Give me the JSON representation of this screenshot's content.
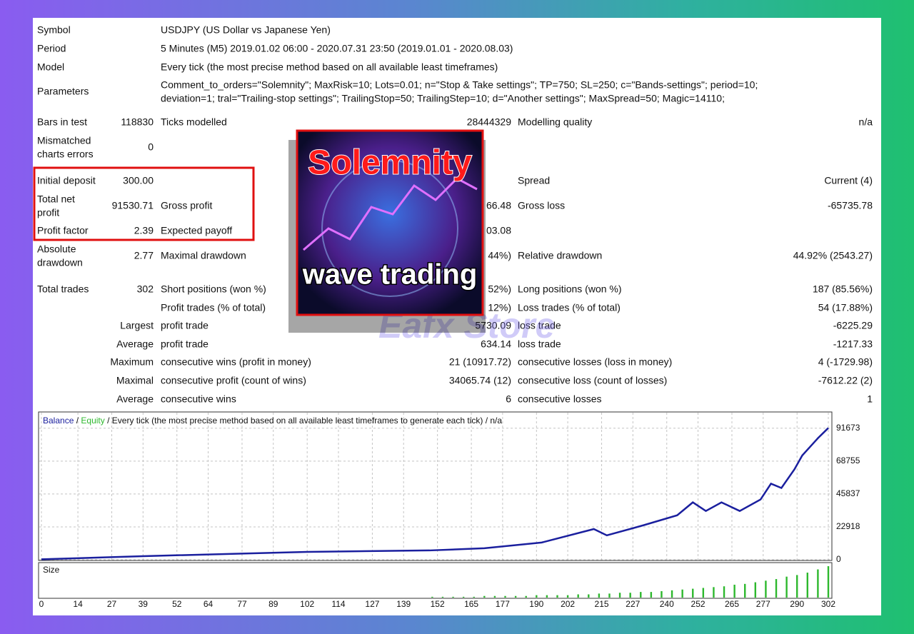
{
  "header_rows": [
    [
      "Symbol",
      "USDJPY (US Dollar vs Japanese Yen)"
    ],
    [
      "Period",
      "5 Minutes (M5) 2019.01.02 06:00 - 2020.07.31 23:50 (2019.01.01 - 2020.08.03)"
    ],
    [
      "Model",
      "Every tick (the most precise method based on all available least timeframes)"
    ]
  ],
  "parameters": {
    "label": "Parameters",
    "lines": [
      "Comment_to_orders=\"Solemnity\"; MaxRisk=10; Lots=0.01; n=\"Stop & Take settings\"; TP=750; SL=250; c=\"Bands-settings\"; period=10;",
      "deviation=1; tral=\"Trailing-stop settings\"; TrailingStop=50; TrailingStep=10; d=\"Another settings\"; MaxSpread=50; Magic=14110;"
    ]
  },
  "rows": [
    {
      "l1": "Bars in test",
      "v1": "118830",
      "l2": "Ticks modelled",
      "v2": "28444329",
      "l3": "Modelling quality",
      "v3": "n/a"
    },
    {
      "l1": [
        "Mismatched",
        "charts errors"
      ],
      "v1": "0"
    },
    {
      "l1": "Initial deposit",
      "v1": "300.00",
      "l3": "Spread",
      "v3": "Current (4)"
    },
    {
      "l1": [
        "Total net",
        "profit"
      ],
      "v1": "91530.71",
      "l2": "Gross profit",
      "v2": "66.48",
      "l3": "Gross loss",
      "v3": "-65735.78"
    },
    {
      "l1": "Profit factor",
      "v1": "2.39",
      "l2": "Expected payoff",
      "v2": "03.08"
    },
    {
      "l1": [
        "Absolute",
        "drawdown"
      ],
      "v1": "2.77",
      "l2": "Maximal drawdown",
      "v2": "44%)",
      "l3": "Relative drawdown",
      "v3": "44.92% (2543.27)"
    },
    {
      "l1": "Total trades",
      "v1": "302",
      "l2": "Short positions (won %)",
      "v2": "52%)",
      "l3": "Long positions (won %)",
      "v3": "187 (85.56%)"
    },
    {
      "l2": "Profit trades (% of total)",
      "v2": "12%)",
      "l3": "Loss trades (% of total)",
      "v3": "54 (17.88%)"
    },
    {
      "v1": "Largest",
      "l2": "profit trade",
      "v2": "5730.09",
      "l3": "loss trade",
      "v3": "-6225.29"
    },
    {
      "v1": "Average",
      "l2": "profit trade",
      "v2": "634.14",
      "l3": "loss trade",
      "v3": "-1217.33"
    },
    {
      "v1": "Maximum",
      "l2": "consecutive wins (profit in money)",
      "v2": "21 (10917.72)",
      "l3": "consecutive losses (loss in money)",
      "v3": "4 (-1729.98)"
    },
    {
      "v1": "Maximal",
      "l2": "consecutive profit (count of wins)",
      "v2": "34065.74 (12)",
      "l3": "consecutive loss (count of losses)",
      "v3": "-7612.22 (2)"
    },
    {
      "v1": "Average",
      "l2": "consecutive wins",
      "v2": "6",
      "l3": "consecutive losses",
      "v3": "1"
    }
  ],
  "overlay": {
    "title": "Solemnity",
    "subtitle": "wave trading",
    "watermark": "Eafx Store"
  },
  "chart_data": {
    "type": "line",
    "separator": "/",
    "equity_label": "Equity",
    "equity_color": "#2eb82e",
    "subtitle": "/ Every tick (the most precise method based on all available least timeframes to generate each tick) / n/a",
    "series": [
      {
        "name": "Balance",
        "color": "#1a1f9e",
        "x": [
          0,
          39,
          102,
          149,
          170,
          192,
          212,
          217,
          231,
          244,
          250,
          255,
          261,
          268,
          276,
          280,
          284,
          289,
          292,
          298,
          302
        ],
        "values": [
          300,
          2500,
          5500,
          6500,
          8000,
          12000,
          21400,
          17000,
          24000,
          31000,
          40000,
          34000,
          40000,
          34000,
          42000,
          53000,
          50000,
          63000,
          72700,
          84700,
          91830
        ]
      }
    ],
    "xlim": [
      0,
      302
    ],
    "xticks": [
      0,
      14,
      27,
      39,
      52,
      64,
      77,
      89,
      102,
      114,
      127,
      139,
      152,
      165,
      177,
      190,
      202,
      215,
      227,
      240,
      252,
      265,
      277,
      290,
      302
    ],
    "ylim": [
      0,
      102500
    ],
    "yticks": [
      0,
      22918,
      45837,
      68755,
      91673
    ],
    "grid": true,
    "size_pane": {
      "label": "Size",
      "color": "#2db82d",
      "x": [
        150,
        154,
        158,
        162,
        166,
        170,
        174,
        178,
        182,
        186,
        190,
        194,
        198,
        202,
        206,
        210,
        214,
        218,
        222,
        226,
        230,
        234,
        238,
        242,
        246,
        250,
        254,
        258,
        262,
        266,
        270,
        274,
        278,
        282,
        286,
        290,
        294,
        298,
        302
      ],
      "values": [
        0.01,
        0.01,
        0.01,
        0.01,
        0.01,
        0.02,
        0.02,
        0.02,
        0.02,
        0.02,
        0.03,
        0.03,
        0.03,
        0.03,
        0.04,
        0.04,
        0.05,
        0.05,
        0.06,
        0.06,
        0.07,
        0.07,
        0.08,
        0.09,
        0.1,
        0.11,
        0.12,
        0.13,
        0.14,
        0.16,
        0.17,
        0.19,
        0.21,
        0.23,
        0.26,
        0.28,
        0.31,
        0.35,
        0.39
      ]
    }
  }
}
